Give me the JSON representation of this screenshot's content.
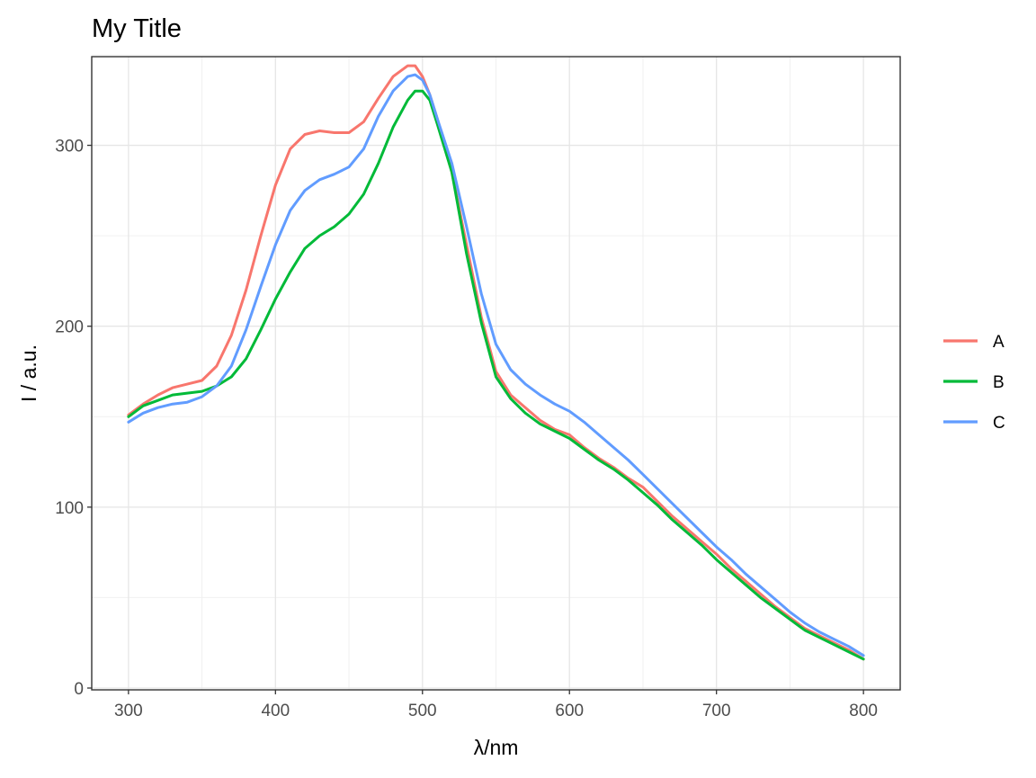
{
  "chart_data": {
    "type": "line",
    "title": "My Title",
    "xlabel": "λ/nm",
    "ylabel": "I / a.u.",
    "xlim": [
      275,
      825
    ],
    "ylim": [
      -1,
      349
    ],
    "xticks": [
      300,
      400,
      500,
      600,
      700,
      800
    ],
    "yticks": [
      0,
      100,
      200,
      300
    ],
    "grid": true,
    "legend_position": "right",
    "x": [
      300,
      310,
      320,
      330,
      340,
      350,
      360,
      370,
      380,
      390,
      400,
      410,
      420,
      430,
      440,
      450,
      460,
      470,
      480,
      490,
      495,
      500,
      505,
      510,
      520,
      530,
      540,
      550,
      560,
      570,
      580,
      590,
      600,
      610,
      620,
      630,
      640,
      650,
      660,
      670,
      680,
      690,
      700,
      710,
      720,
      730,
      740,
      750,
      760,
      770,
      780,
      790,
      800
    ],
    "series": [
      {
        "name": "A",
        "color": "#F8766D",
        "values": [
          151,
          157,
          162,
          166,
          168,
          170,
          178,
          195,
          220,
          250,
          278,
          298,
          306,
          308,
          307,
          307,
          313,
          326,
          338,
          344,
          344,
          338,
          328,
          315,
          285,
          245,
          205,
          175,
          162,
          155,
          148,
          143,
          140,
          133,
          127,
          122,
          116,
          111,
          103,
          95,
          88,
          81,
          74,
          66,
          59,
          52,
          45,
          39,
          33,
          29,
          25,
          21,
          16
        ]
      },
      {
        "name": "B",
        "color": "#00BA38",
        "values": [
          150,
          156,
          159,
          162,
          163,
          164,
          167,
          172,
          182,
          198,
          215,
          230,
          243,
          250,
          255,
          262,
          273,
          290,
          310,
          325,
          330,
          330,
          325,
          312,
          285,
          240,
          202,
          172,
          160,
          152,
          146,
          142,
          138,
          132,
          126,
          121,
          115,
          108,
          101,
          93,
          86,
          79,
          71,
          64,
          57,
          50,
          44,
          38,
          32,
          28,
          24,
          20,
          16
        ]
      },
      {
        "name": "C",
        "color": "#619CFF",
        "values": [
          147,
          152,
          155,
          157,
          158,
          161,
          167,
          178,
          198,
          222,
          245,
          264,
          275,
          281,
          284,
          288,
          298,
          316,
          330,
          338,
          339,
          336,
          328,
          315,
          290,
          255,
          218,
          190,
          176,
          168,
          162,
          157,
          153,
          147,
          140,
          133,
          126,
          118,
          110,
          102,
          94,
          86,
          78,
          71,
          63,
          56,
          49,
          42,
          36,
          31,
          27,
          23,
          18
        ]
      }
    ]
  }
}
